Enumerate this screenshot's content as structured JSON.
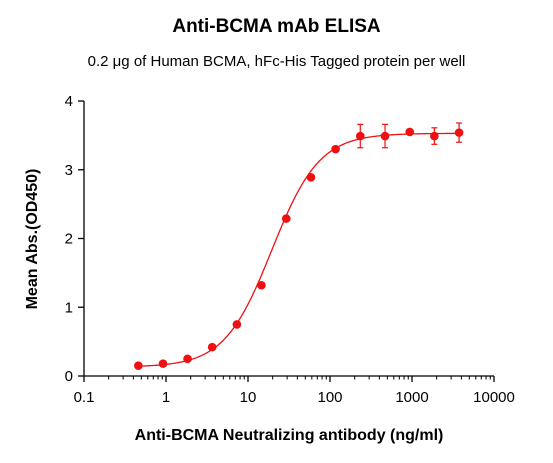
{
  "chart_data": {
    "type": "scatter",
    "title": "Anti-BCMA mAb ELISA",
    "subtitle": "0.2 μg of Human BCMA, hFc-His Tagged protein per well",
    "xlabel": "Anti-BCMA Neutralizing antibody (ng/ml)",
    "ylabel": "Mean Abs.(OD450)",
    "xscale": "log",
    "xlim": [
      0.1,
      10000
    ],
    "ylim": [
      0,
      4
    ],
    "xticks": [
      "0.1",
      "1",
      "10",
      "100",
      "1000",
      "10000"
    ],
    "yticks": [
      "0",
      "1",
      "2",
      "3",
      "4"
    ],
    "grid": false,
    "legend": "none",
    "color": "#ee1111",
    "series": [
      {
        "x": [
          0.46,
          0.92,
          1.83,
          3.66,
          7.32,
          14.6,
          29.3,
          58.6,
          117,
          234,
          469,
          938,
          1875,
          3750
        ],
        "y": [
          0.15,
          0.18,
          0.25,
          0.42,
          0.75,
          1.32,
          2.29,
          2.89,
          3.3,
          3.49,
          3.49,
          3.55,
          3.49,
          3.54
        ],
        "err": [
          0,
          0,
          0,
          0,
          0,
          0,
          0,
          0,
          0,
          0.17,
          0.17,
          0,
          0.12,
          0.14
        ],
        "fit": "sigmoid"
      }
    ]
  }
}
